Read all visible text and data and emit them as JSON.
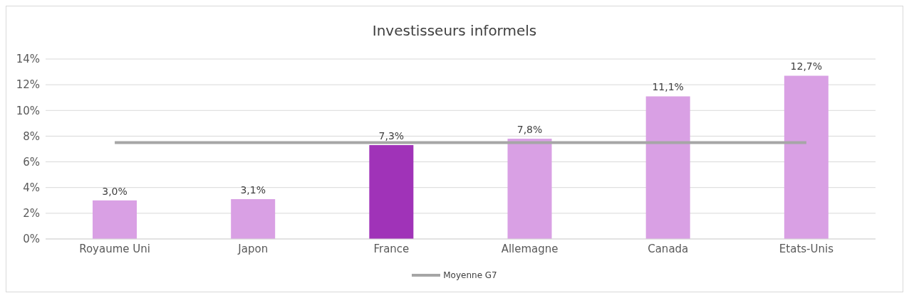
{
  "chart_data": {
    "type": "bar",
    "title": "Investisseurs informels",
    "categories": [
      "Royaume Uni",
      "Japon",
      "France",
      "Allemagne",
      "Canada",
      "Etats-Unis"
    ],
    "series": [
      {
        "colors": [
          "#d9a0e4",
          "#d9a0e4",
          "#a033b8",
          "#d9a0e4",
          "#d9a0e4",
          "#d9a0e4"
        ],
        "values": [
          3.0,
          3.1,
          7.3,
          7.8,
          11.1,
          12.7
        ],
        "value_labels": [
          "3,0%",
          "3,1%",
          "7,3%",
          "7,8%",
          "11,1%",
          "12,7%"
        ]
      },
      {
        "type": "line",
        "name": "Moyenne G7",
        "color": "#a6a6a6",
        "values": [
          7.5,
          7.5,
          7.5,
          7.5,
          7.5,
          7.5
        ]
      }
    ],
    "ylim": [
      0,
      14
    ],
    "yticks": [
      {
        "value": 0,
        "label": "0%"
      },
      {
        "value": 2,
        "label": "2%"
      },
      {
        "value": 4,
        "label": "4%"
      },
      {
        "value": 6,
        "label": "6%"
      },
      {
        "value": 8,
        "label": "8%"
      },
      {
        "value": 10,
        "label": "10%"
      },
      {
        "value": 12,
        "label": "12%"
      },
      {
        "value": 14,
        "label": "14%"
      }
    ],
    "grid": "y",
    "legend": "bottom"
  }
}
